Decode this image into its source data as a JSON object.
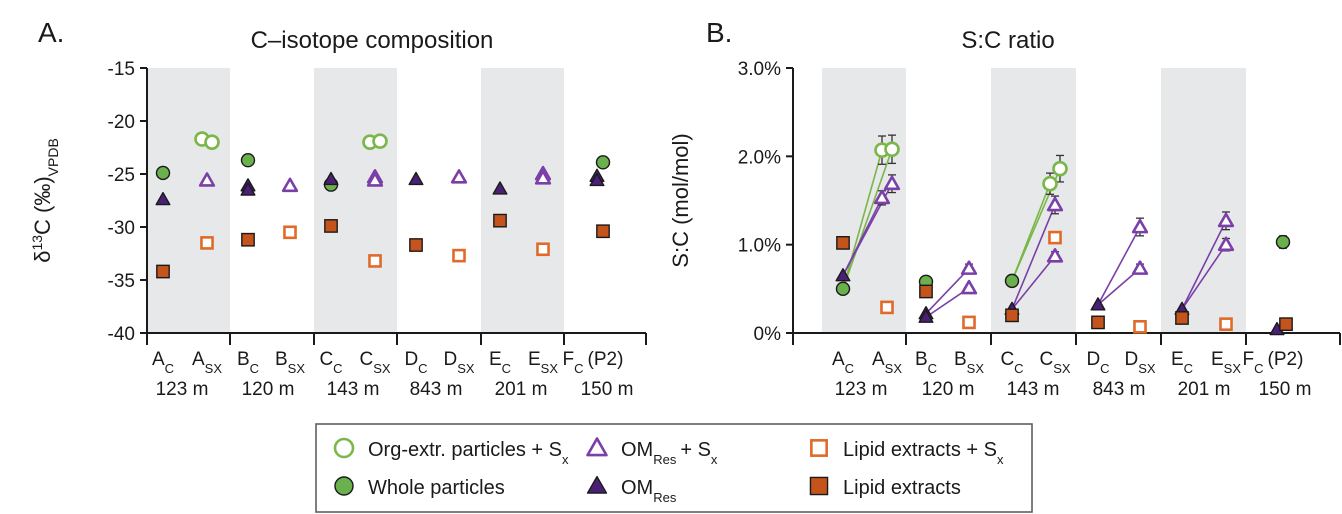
{
  "legend": {
    "items": [
      {
        "key": "org_sx",
        "text": "Org-extr. particles + S",
        "sub": "x",
        "marker": "circle-open",
        "color": "#7ab648"
      },
      {
        "key": "whole",
        "text": "Whole particles",
        "sub": "",
        "marker": "circle-filled",
        "color": "#6ab04c"
      },
      {
        "key": "om_sx",
        "text": "OM",
        "sub": "Res",
        "tail": "+ S",
        "tailsub": "x",
        "marker": "triangle-open",
        "color": "#7b3fa8"
      },
      {
        "key": "om",
        "text": "OM",
        "sub": "Res",
        "marker": "triangle-filled",
        "color": "#4b1f75"
      },
      {
        "key": "lipid_sx",
        "text": "Lipid extracts + S",
        "sub": "x",
        "marker": "square-open",
        "color": "#e06a2a"
      },
      {
        "key": "lipid",
        "text": "Lipid extracts",
        "sub": "",
        "marker": "square-filled",
        "color": "#c4531c"
      }
    ]
  },
  "chart_data": [
    {
      "panel": "A.",
      "type": "scatter",
      "title": "C–isotope composition",
      "ylabel_parts": [
        "δ",
        "13",
        "C (‰)",
        "VPDB"
      ],
      "ylim": [
        -40,
        -15
      ],
      "yticks": [
        "-15",
        "-20",
        "-25",
        "-30",
        "-35",
        "-40"
      ],
      "groups": [
        {
          "cats": [
            [
              "A",
              "C"
            ],
            [
              "A",
              "SX"
            ]
          ],
          "depth": "123 m"
        },
        {
          "cats": [
            [
              "B",
              "C"
            ],
            [
              "B",
              "SX"
            ]
          ],
          "depth": "120 m"
        },
        {
          "cats": [
            [
              "C",
              "C"
            ],
            [
              "C",
              "SX"
            ]
          ],
          "depth": "143 m"
        },
        {
          "cats": [
            [
              "D",
              "C"
            ],
            [
              "D",
              "SX"
            ]
          ],
          "depth": "843 m"
        },
        {
          "cats": [
            [
              "E",
              "C"
            ],
            [
              "E",
              "SX"
            ]
          ],
          "depth": "201 m"
        },
        {
          "cats": [
            [
              "F",
              "C",
              "(P2)"
            ]
          ],
          "depth": "150 m"
        }
      ],
      "points": [
        {
          "series": "whole",
          "x": "A_C",
          "y": -24.9
        },
        {
          "series": "om",
          "x": "A_C",
          "y": -27.4
        },
        {
          "series": "lipid",
          "x": "A_C",
          "y": -34.2
        },
        {
          "series": "org_sx",
          "x": "A_SX",
          "y": -21.7,
          "dx": -0.25,
          "err": 0.3
        },
        {
          "series": "org_sx",
          "x": "A_SX",
          "y": -22.0,
          "dx": 0.25,
          "err": 0.3
        },
        {
          "series": "om_sx",
          "x": "A_SX",
          "y": -25.6
        },
        {
          "series": "lipid_sx",
          "x": "A_SX",
          "y": -31.5,
          "err": 0.4
        },
        {
          "series": "whole",
          "x": "B_C",
          "y": -23.7
        },
        {
          "series": "om",
          "x": "B_C",
          "y": -26.1
        },
        {
          "series": "om",
          "x": "B_C",
          "y": -26.5
        },
        {
          "series": "lipid",
          "x": "B_C",
          "y": -31.2
        },
        {
          "series": "om_sx",
          "x": "B_SX",
          "y": -26.1
        },
        {
          "series": "lipid_sx",
          "x": "B_SX",
          "y": -30.5,
          "err": 0.4
        },
        {
          "series": "whole",
          "x": "C_C",
          "y": -26.0
        },
        {
          "series": "om",
          "x": "C_C",
          "y": -25.5
        },
        {
          "series": "lipid",
          "x": "C_C",
          "y": -29.9
        },
        {
          "series": "org_sx",
          "x": "C_SX",
          "y": -22.0,
          "dx": -0.25,
          "err": 0.3
        },
        {
          "series": "org_sx",
          "x": "C_SX",
          "y": -21.9,
          "dx": 0.25,
          "err": 0.3
        },
        {
          "series": "om_sx",
          "x": "C_SX",
          "y": -25.3
        },
        {
          "series": "om_sx",
          "x": "C_SX",
          "y": -25.6
        },
        {
          "series": "lipid_sx",
          "x": "C_SX",
          "y": -33.2,
          "err": 0.4
        },
        {
          "series": "om",
          "x": "D_C",
          "y": -25.5
        },
        {
          "series": "lipid",
          "x": "D_C",
          "y": -31.7
        },
        {
          "series": "om_sx",
          "x": "D_SX",
          "y": -25.3
        },
        {
          "series": "lipid_sx",
          "x": "D_SX",
          "y": -32.7,
          "err": 0.4
        },
        {
          "series": "om",
          "x": "E_C",
          "y": -26.4
        },
        {
          "series": "lipid",
          "x": "E_C",
          "y": -29.4
        },
        {
          "series": "om_sx",
          "x": "E_SX",
          "y": -25.0
        },
        {
          "series": "om_sx",
          "x": "E_SX",
          "y": -25.4
        },
        {
          "series": "lipid_sx",
          "x": "E_SX",
          "y": -32.1,
          "err": 0.4
        },
        {
          "series": "whole",
          "x": "F_C",
          "y": -23.9
        },
        {
          "series": "om",
          "x": "F_C",
          "y": -25.2,
          "dx": -0.3
        },
        {
          "series": "om",
          "x": "F_C",
          "y": -25.6,
          "dx": -0.3
        },
        {
          "series": "lipid",
          "x": "F_C",
          "y": -30.4
        }
      ]
    },
    {
      "panel": "B.",
      "type": "scatter",
      "title": "S:C ratio",
      "ylabel": "S:C (mol/mol)",
      "ylim": [
        0,
        3.0
      ],
      "yticks": [
        "3.0%",
        "2.0%",
        "1.0%",
        "0%"
      ],
      "groups": [
        {
          "cats": [
            [
              "A",
              "C"
            ],
            [
              "A",
              "SX"
            ]
          ],
          "depth": "123 m"
        },
        {
          "cats": [
            [
              "B",
              "C"
            ],
            [
              "B",
              "SX"
            ]
          ],
          "depth": "120 m"
        },
        {
          "cats": [
            [
              "C",
              "C"
            ],
            [
              "C",
              "SX"
            ]
          ],
          "depth": "143 m"
        },
        {
          "cats": [
            [
              "D",
              "C"
            ],
            [
              "D",
              "SX"
            ]
          ],
          "depth": "843 m"
        },
        {
          "cats": [
            [
              "E",
              "C"
            ],
            [
              "E",
              "SX"
            ]
          ],
          "depth": "201 m"
        },
        {
          "cats": [
            [
              "F",
              "C",
              "(P2)"
            ]
          ],
          "depth": "150 m"
        }
      ],
      "links": [
        {
          "series": "org_sx",
          "from": [
            "A_C",
            0.5
          ],
          "to": [
            "A_SX",
            2.07,
            -0.25
          ]
        },
        {
          "series": "org_sx",
          "from": [
            "A_C",
            0.5
          ],
          "to": [
            "A_SX",
            2.08,
            0.25
          ]
        },
        {
          "series": "om_sx",
          "from": [
            "A_C",
            0.65
          ],
          "to": [
            "A_SX",
            1.53,
            -0.25
          ]
        },
        {
          "series": "om_sx",
          "from": [
            "A_C",
            0.65
          ],
          "to": [
            "A_SX",
            1.69,
            0.25
          ]
        },
        {
          "series": "om_sx",
          "from": [
            "B_C",
            0.22
          ],
          "to": [
            "B_SX",
            0.73
          ]
        },
        {
          "series": "om_sx",
          "from": [
            "B_C",
            0.18
          ],
          "to": [
            "B_SX",
            0.51
          ]
        },
        {
          "series": "org_sx",
          "from": [
            "C_C",
            0.59
          ],
          "to": [
            "C_SX",
            1.69,
            -0.25
          ]
        },
        {
          "series": "org_sx",
          "from": [
            "C_C",
            0.59
          ],
          "to": [
            "C_SX",
            1.86,
            0.25
          ]
        },
        {
          "series": "om_sx",
          "from": [
            "C_C",
            0.27
          ],
          "to": [
            "C_SX",
            1.45
          ]
        },
        {
          "series": "om_sx",
          "from": [
            "C_C",
            0.27
          ],
          "to": [
            "C_SX",
            0.87
          ]
        },
        {
          "series": "om_sx",
          "from": [
            "D_C",
            0.32
          ],
          "to": [
            "D_SX",
            1.2
          ]
        },
        {
          "series": "om_sx",
          "from": [
            "D_C",
            0.32
          ],
          "to": [
            "D_SX",
            0.73
          ]
        },
        {
          "series": "om_sx",
          "from": [
            "E_C",
            0.27
          ],
          "to": [
            "E_SX",
            1.27
          ]
        },
        {
          "series": "om_sx",
          "from": [
            "E_C",
            0.27
          ],
          "to": [
            "E_SX",
            1.0
          ]
        }
      ],
      "points": [
        {
          "series": "lipid",
          "x": "A_C",
          "y": 1.02
        },
        {
          "series": "om",
          "x": "A_C",
          "y": 0.65
        },
        {
          "series": "whole",
          "x": "A_C",
          "y": 0.5
        },
        {
          "series": "org_sx",
          "x": "A_SX",
          "y": 2.07,
          "dx": -0.25,
          "err": 0.16
        },
        {
          "series": "org_sx",
          "x": "A_SX",
          "y": 2.08,
          "dx": 0.25,
          "err": 0.16
        },
        {
          "series": "om_sx",
          "x": "A_SX",
          "y": 1.53,
          "dx": -0.25,
          "err": 0.08
        },
        {
          "series": "om_sx",
          "x": "A_SX",
          "y": 1.69,
          "dx": 0.25,
          "err": 0.1
        },
        {
          "series": "lipid_sx",
          "x": "A_SX",
          "y": 0.29,
          "err": 0.03
        },
        {
          "series": "whole",
          "x": "B_C",
          "y": 0.58
        },
        {
          "series": "lipid",
          "x": "B_C",
          "y": 0.47
        },
        {
          "series": "om",
          "x": "B_C",
          "y": 0.22
        },
        {
          "series": "om",
          "x": "B_C",
          "y": 0.18
        },
        {
          "series": "om_sx",
          "x": "B_SX",
          "y": 0.73,
          "err": 0.05
        },
        {
          "series": "om_sx",
          "x": "B_SX",
          "y": 0.51
        },
        {
          "series": "lipid_sx",
          "x": "B_SX",
          "y": 0.12
        },
        {
          "series": "whole",
          "x": "C_C",
          "y": 0.59
        },
        {
          "series": "om",
          "x": "C_C",
          "y": 0.27
        },
        {
          "series": "lipid",
          "x": "C_C",
          "y": 0.2
        },
        {
          "series": "org_sx",
          "x": "C_SX",
          "y": 1.69,
          "dx": -0.25,
          "err": 0.12
        },
        {
          "series": "org_sx",
          "x": "C_SX",
          "y": 1.86,
          "dx": 0.25,
          "err": 0.15
        },
        {
          "series": "om_sx",
          "x": "C_SX",
          "y": 1.45,
          "err": 0.1
        },
        {
          "series": "om_sx",
          "x": "C_SX",
          "y": 0.87,
          "err": 0.05
        },
        {
          "series": "lipid_sx",
          "x": "C_SX",
          "y": 1.08,
          "err": 0.06
        },
        {
          "series": "om",
          "x": "D_C",
          "y": 0.32
        },
        {
          "series": "lipid",
          "x": "D_C",
          "y": 0.12
        },
        {
          "series": "om_sx",
          "x": "D_SX",
          "y": 1.2,
          "err": 0.1
        },
        {
          "series": "om_sx",
          "x": "D_SX",
          "y": 0.73,
          "err": 0.05
        },
        {
          "series": "lipid_sx",
          "x": "D_SX",
          "y": 0.07
        },
        {
          "series": "om",
          "x": "E_C",
          "y": 0.27
        },
        {
          "series": "lipid",
          "x": "E_C",
          "y": 0.17
        },
        {
          "series": "om_sx",
          "x": "E_SX",
          "y": 1.27,
          "err": 0.1
        },
        {
          "series": "om_sx",
          "x": "E_SX",
          "y": 1.0,
          "err": 0.07
        },
        {
          "series": "lipid_sx",
          "x": "E_SX",
          "y": 0.1
        },
        {
          "series": "whole",
          "x": "F_C",
          "y": 1.03,
          "err": 0.07
        },
        {
          "series": "om",
          "x": "F_C",
          "y": 0.04,
          "dx": -0.3
        },
        {
          "series": "lipid",
          "x": "F_C",
          "y": 0.1,
          "dx": 0.15
        }
      ]
    }
  ]
}
